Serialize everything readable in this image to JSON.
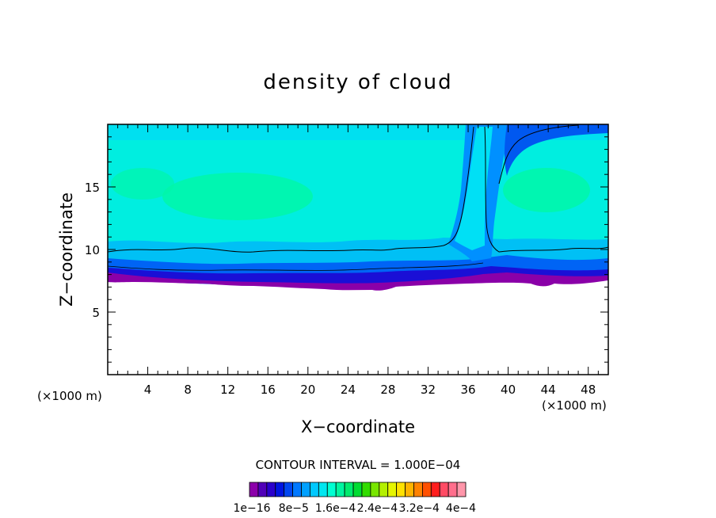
{
  "chart_data": {
    "type": "heatmap",
    "title": "density of cloud",
    "xlabel": "X−coordinate",
    "ylabel": "Z−coordinate",
    "x_unit": "(×1000 m)",
    "z_unit": "(×1000 m)",
    "xlim": [
      0,
      50
    ],
    "ylim": [
      0,
      20
    ],
    "x_ticks": [
      "4",
      "8",
      "12",
      "16",
      "20",
      "24",
      "28",
      "32",
      "36",
      "40",
      "44",
      "48"
    ],
    "y_ticks": [
      "5",
      "10",
      "15"
    ],
    "contour_interval_label": "CONTOUR INTERVAL = 1.000E−04",
    "colorbar": {
      "labels": [
        "1e−16",
        "8e−5",
        "1.6e−4",
        "2.4e−4",
        "3.2e−4",
        "4e−4"
      ],
      "colors": [
        "#8c00aa",
        "#5000b8",
        "#2a00cc",
        "#0014e0",
        "#0046f0",
        "#0078ff",
        "#00a0ff",
        "#00c8ff",
        "#00e6f0",
        "#00ffd2",
        "#00f5a0",
        "#00eb6e",
        "#00dc32",
        "#32dc00",
        "#78e600",
        "#b4f000",
        "#e6f500",
        "#ffe100",
        "#ffb400",
        "#ff8200",
        "#ff5000",
        "#ff1e1e",
        "#ff4b64",
        "#ff6e8c",
        "#ff96aa"
      ]
    },
    "approx_structure": {
      "cloud_base_km": 7.5,
      "cloud_top_km": 20,
      "plume_x_km": [
        34,
        40
      ],
      "dominant_range": "8e-5 to 1.6e-4"
    }
  }
}
